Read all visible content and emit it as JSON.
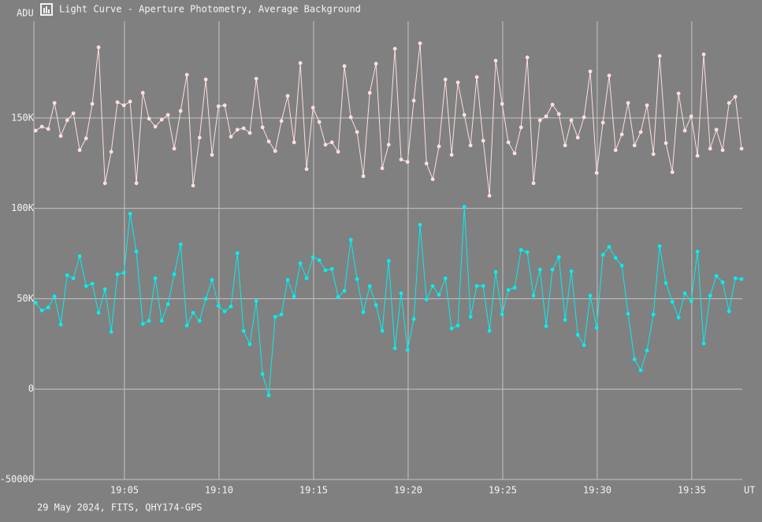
{
  "chart_data": {
    "type": "line",
    "title": "Light Curve - Aperture Photometry, Average Background",
    "y_label": "ADU",
    "x_label": "UT",
    "footer": "29 May 2024, FITS, QHY174-GPS",
    "grid": true,
    "xlim": [
      1140.21,
      1177.67
    ],
    "ylim": [
      -50000,
      203500
    ],
    "xticks": [
      {
        "value": 1145,
        "label": "19:05"
      },
      {
        "value": 1150,
        "label": "19:10"
      },
      {
        "value": 1155,
        "label": "19:15"
      },
      {
        "value": 1160,
        "label": "19:20"
      },
      {
        "value": 1165,
        "label": "19:25"
      },
      {
        "value": 1170,
        "label": "19:30"
      },
      {
        "value": 1175,
        "label": "19:35"
      }
    ],
    "yticks": [
      -50000,
      0,
      {
        "value": 50000,
        "label": "50K"
      },
      {
        "value": 100000,
        "label": "100K"
      },
      {
        "value": 150000,
        "label": "150K"
      }
    ],
    "x": [
      1140.3,
      1140.63,
      1140.97,
      1141.3,
      1141.63,
      1141.97,
      1142.3,
      1142.63,
      1142.97,
      1143.3,
      1143.63,
      1143.97,
      1144.3,
      1144.63,
      1144.97,
      1145.3,
      1145.63,
      1145.97,
      1146.3,
      1146.63,
      1146.97,
      1147.3,
      1147.63,
      1147.97,
      1148.3,
      1148.63,
      1148.97,
      1149.3,
      1149.63,
      1149.97,
      1150.3,
      1150.63,
      1150.97,
      1151.3,
      1151.63,
      1151.97,
      1152.3,
      1152.63,
      1152.97,
      1153.3,
      1153.63,
      1153.97,
      1154.3,
      1154.63,
      1154.97,
      1155.3,
      1155.63,
      1155.97,
      1156.3,
      1156.63,
      1156.97,
      1157.3,
      1157.63,
      1157.97,
      1158.3,
      1158.63,
      1158.97,
      1159.3,
      1159.63,
      1159.97,
      1160.3,
      1160.63,
      1160.97,
      1161.3,
      1161.63,
      1161.97,
      1162.3,
      1162.63,
      1162.97,
      1163.3,
      1163.63,
      1163.97,
      1164.3,
      1164.63,
      1164.97,
      1165.3,
      1165.63,
      1165.97,
      1166.3,
      1166.63,
      1166.97,
      1167.3,
      1167.63,
      1167.97,
      1168.3,
      1168.63,
      1168.97,
      1169.3,
      1169.63,
      1169.97,
      1170.3,
      1170.63,
      1170.97,
      1171.3,
      1171.63,
      1171.97,
      1172.3,
      1172.63,
      1172.97,
      1173.3,
      1173.63,
      1173.97,
      1174.3,
      1174.63,
      1174.97,
      1175.3,
      1175.63,
      1175.97,
      1176.3,
      1176.63,
      1176.97,
      1177.3,
      1177.63
    ],
    "series": [
      {
        "color": "#ffdede",
        "values": [
          143000,
          145200,
          143900,
          158300,
          140000,
          148700,
          152600,
          132200,
          138700,
          157800,
          189100,
          113900,
          131300,
          158700,
          157000,
          159100,
          113900,
          163900,
          149600,
          145200,
          149100,
          151700,
          133000,
          153900,
          173900,
          112600,
          139100,
          171300,
          129600,
          156500,
          157000,
          139600,
          143500,
          144300,
          141700,
          171700,
          144800,
          137000,
          131700,
          148300,
          162200,
          136500,
          180400,
          121700,
          155700,
          147800,
          135200,
          136500,
          131300,
          178700,
          150400,
          142200,
          117800,
          163900,
          180000,
          122200,
          135200,
          188300,
          127000,
          125700,
          159600,
          191300,
          124800,
          116100,
          134300,
          171300,
          129600,
          169600,
          151700,
          134800,
          172600,
          137400,
          107000,
          181700,
          157800,
          136500,
          130400,
          144800,
          183500,
          113900,
          148700,
          150900,
          157400,
          152200,
          134800,
          148700,
          139100,
          150400,
          175700,
          119600,
          147400,
          173500,
          132200,
          140900,
          158300,
          134800,
          142200,
          157000,
          130000,
          184300,
          136100,
          120000,
          163500,
          143000,
          150900,
          129100,
          185200,
          133000,
          143500,
          132200,
          158300,
          161700,
          133000
        ]
      },
      {
        "color": "#00f0f0",
        "values": [
          47800,
          43500,
          45200,
          51300,
          35700,
          63000,
          61300,
          73500,
          57000,
          58300,
          42200,
          55200,
          31700,
          63500,
          64300,
          97000,
          76100,
          36100,
          37800,
          61300,
          37800,
          47000,
          63500,
          80000,
          35200,
          42200,
          37800,
          50000,
          60400,
          46100,
          43000,
          45700,
          75200,
          32200,
          24800,
          48700,
          8300,
          -3500,
          40000,
          41300,
          60400,
          51300,
          69600,
          61300,
          73000,
          71300,
          65700,
          66500,
          50900,
          54300,
          82600,
          60900,
          42600,
          57000,
          46500,
          32200,
          70900,
          22600,
          53000,
          21700,
          38700,
          90900,
          49600,
          57000,
          52200,
          61300,
          33500,
          35200,
          100900,
          40000,
          57000,
          57000,
          32200,
          64800,
          41300,
          54800,
          56100,
          77000,
          75700,
          51700,
          66100,
          34800,
          66100,
          73000,
          38300,
          65200,
          30000,
          24300,
          51700,
          33900,
          74300,
          78700,
          72600,
          68300,
          41700,
          16500,
          10400,
          21300,
          41300,
          79100,
          58700,
          48300,
          39600,
          53000,
          48700,
          76100,
          25200,
          51700,
          62600,
          59100,
          43000,
          61300,
          60900
        ]
      }
    ]
  }
}
